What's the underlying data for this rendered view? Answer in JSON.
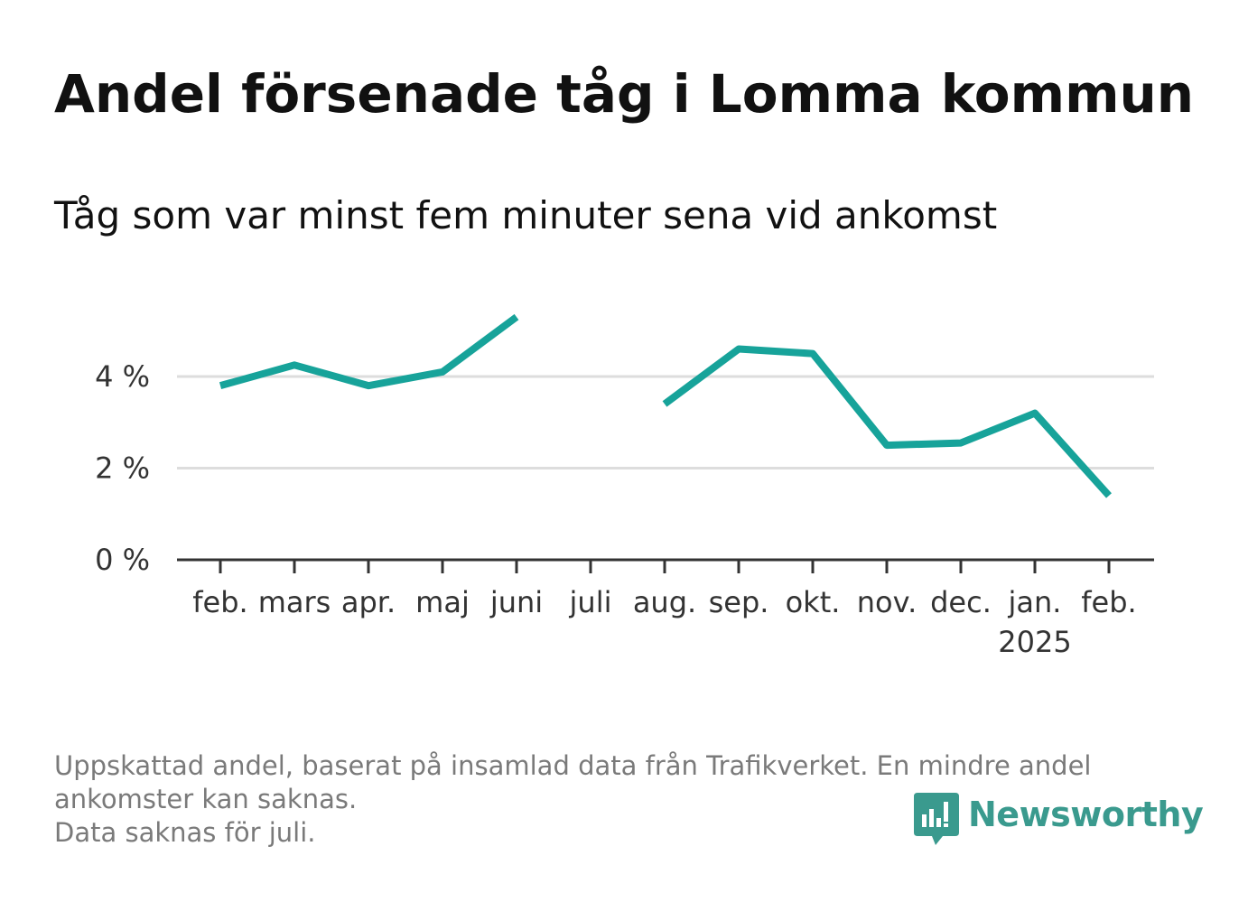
{
  "title": "Andel försenade tåg i Lomma kommun",
  "subtitle": "Tåg som var minst fem minuter sena vid ankomst",
  "footnote": {
    "lines": [
      "Uppskattad andel, baserat på insamlad data från Trafikverket. En mindre andel",
      "ankomster kan saknas.",
      "Data saknas för juli."
    ]
  },
  "brand": {
    "name": "Newsworthy",
    "icon": "bar-chart-logo-icon",
    "color": "#3a9a8e"
  },
  "colors": {
    "line": "#17a39a",
    "grid": "#dddddd",
    "axis": "#333333"
  },
  "chart_data": {
    "type": "line",
    "title": "Andel försenade tåg i Lomma kommun",
    "subtitle": "Tåg som var minst fem minuter sena vid ankomst",
    "categories": [
      "feb.",
      "mars",
      "apr.",
      "maj",
      "juni",
      "juli",
      "aug.",
      "sep.",
      "okt.",
      "nov.",
      "dec.",
      "jan.",
      "feb."
    ],
    "year_label": {
      "category_index": 11,
      "text": "2025"
    },
    "series": [
      {
        "values": [
          3.8,
          4.25,
          3.8,
          4.1,
          5.3,
          null,
          3.4,
          4.6,
          4.5,
          2.5,
          2.55,
          3.2,
          1.4
        ]
      }
    ],
    "unit": "%",
    "yticks": [
      0,
      2,
      4
    ],
    "ytick_labels": [
      "0 %",
      "2 %",
      "4 %"
    ],
    "ylim": [
      0,
      5.5
    ],
    "grid": true,
    "missing_note": "juli"
  }
}
